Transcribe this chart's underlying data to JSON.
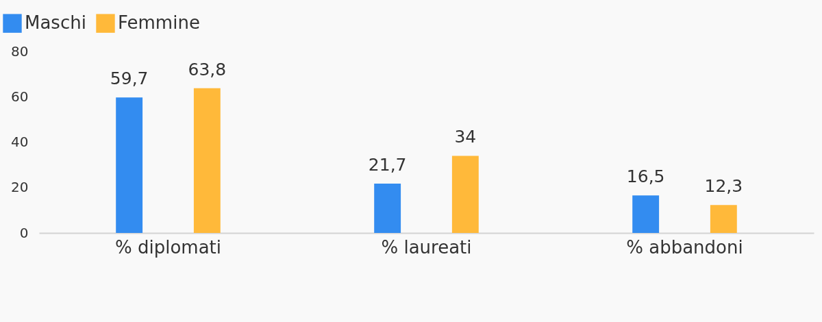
{
  "chart_data": {
    "type": "bar",
    "categories": [
      "% diplomati",
      "% laureati",
      "% abbandoni"
    ],
    "series": [
      {
        "name": "Maschi",
        "color": "#338cf0",
        "values": [
          59.7,
          21.7,
          16.5
        ],
        "value_labels": [
          "59,7",
          "21,7",
          "16,5"
        ]
      },
      {
        "name": "Femmine",
        "color": "#ffb93a",
        "values": [
          63.8,
          34,
          12.3
        ],
        "value_labels": [
          "63,8",
          "34",
          "12,3"
        ]
      }
    ],
    "ylim": [
      0,
      80
    ],
    "yticks": [
      0,
      20,
      40,
      60,
      80
    ],
    "legend": "top left"
  }
}
